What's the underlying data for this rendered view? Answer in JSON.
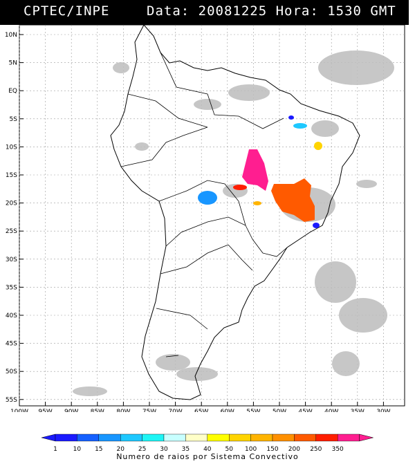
{
  "header": {
    "organization": "CPTEC/INPE",
    "timestamp": "Data: 20081225 Hora: 1530 GMT"
  },
  "map": {
    "lat_labels": [
      "10N",
      "5N",
      "EQ",
      "5S",
      "10S",
      "15S",
      "20S",
      "25S",
      "30S",
      "35S",
      "40S",
      "45S",
      "50S",
      "55S"
    ],
    "lon_labels": [
      "100W",
      "95W",
      "90W",
      "85W",
      "80W",
      "75W",
      "70W",
      "65W",
      "60W",
      "55W",
      "50W",
      "45W",
      "40W",
      "35W",
      "30W"
    ]
  },
  "legend": {
    "values": [
      "1",
      "10",
      "15",
      "20",
      "25",
      "30",
      "35",
      "40",
      "50",
      "100",
      "150",
      "200",
      "250",
      "350"
    ],
    "colors": [
      "#1a1aff",
      "#1560ff",
      "#1896ff",
      "#1ec8ff",
      "#1ef5f5",
      "#c8ffff",
      "#ffffc8",
      "#ffff00",
      "#ffd400",
      "#ffb400",
      "#ff9000",
      "#ff5a00",
      "#ff1e00",
      "#ff1e90"
    ],
    "title": "Numero de raios por Sistema Convectivo"
  },
  "colors": {
    "cloud": "#b9b9b9",
    "coast": "#000000",
    "grid": "#9a9a9a"
  }
}
